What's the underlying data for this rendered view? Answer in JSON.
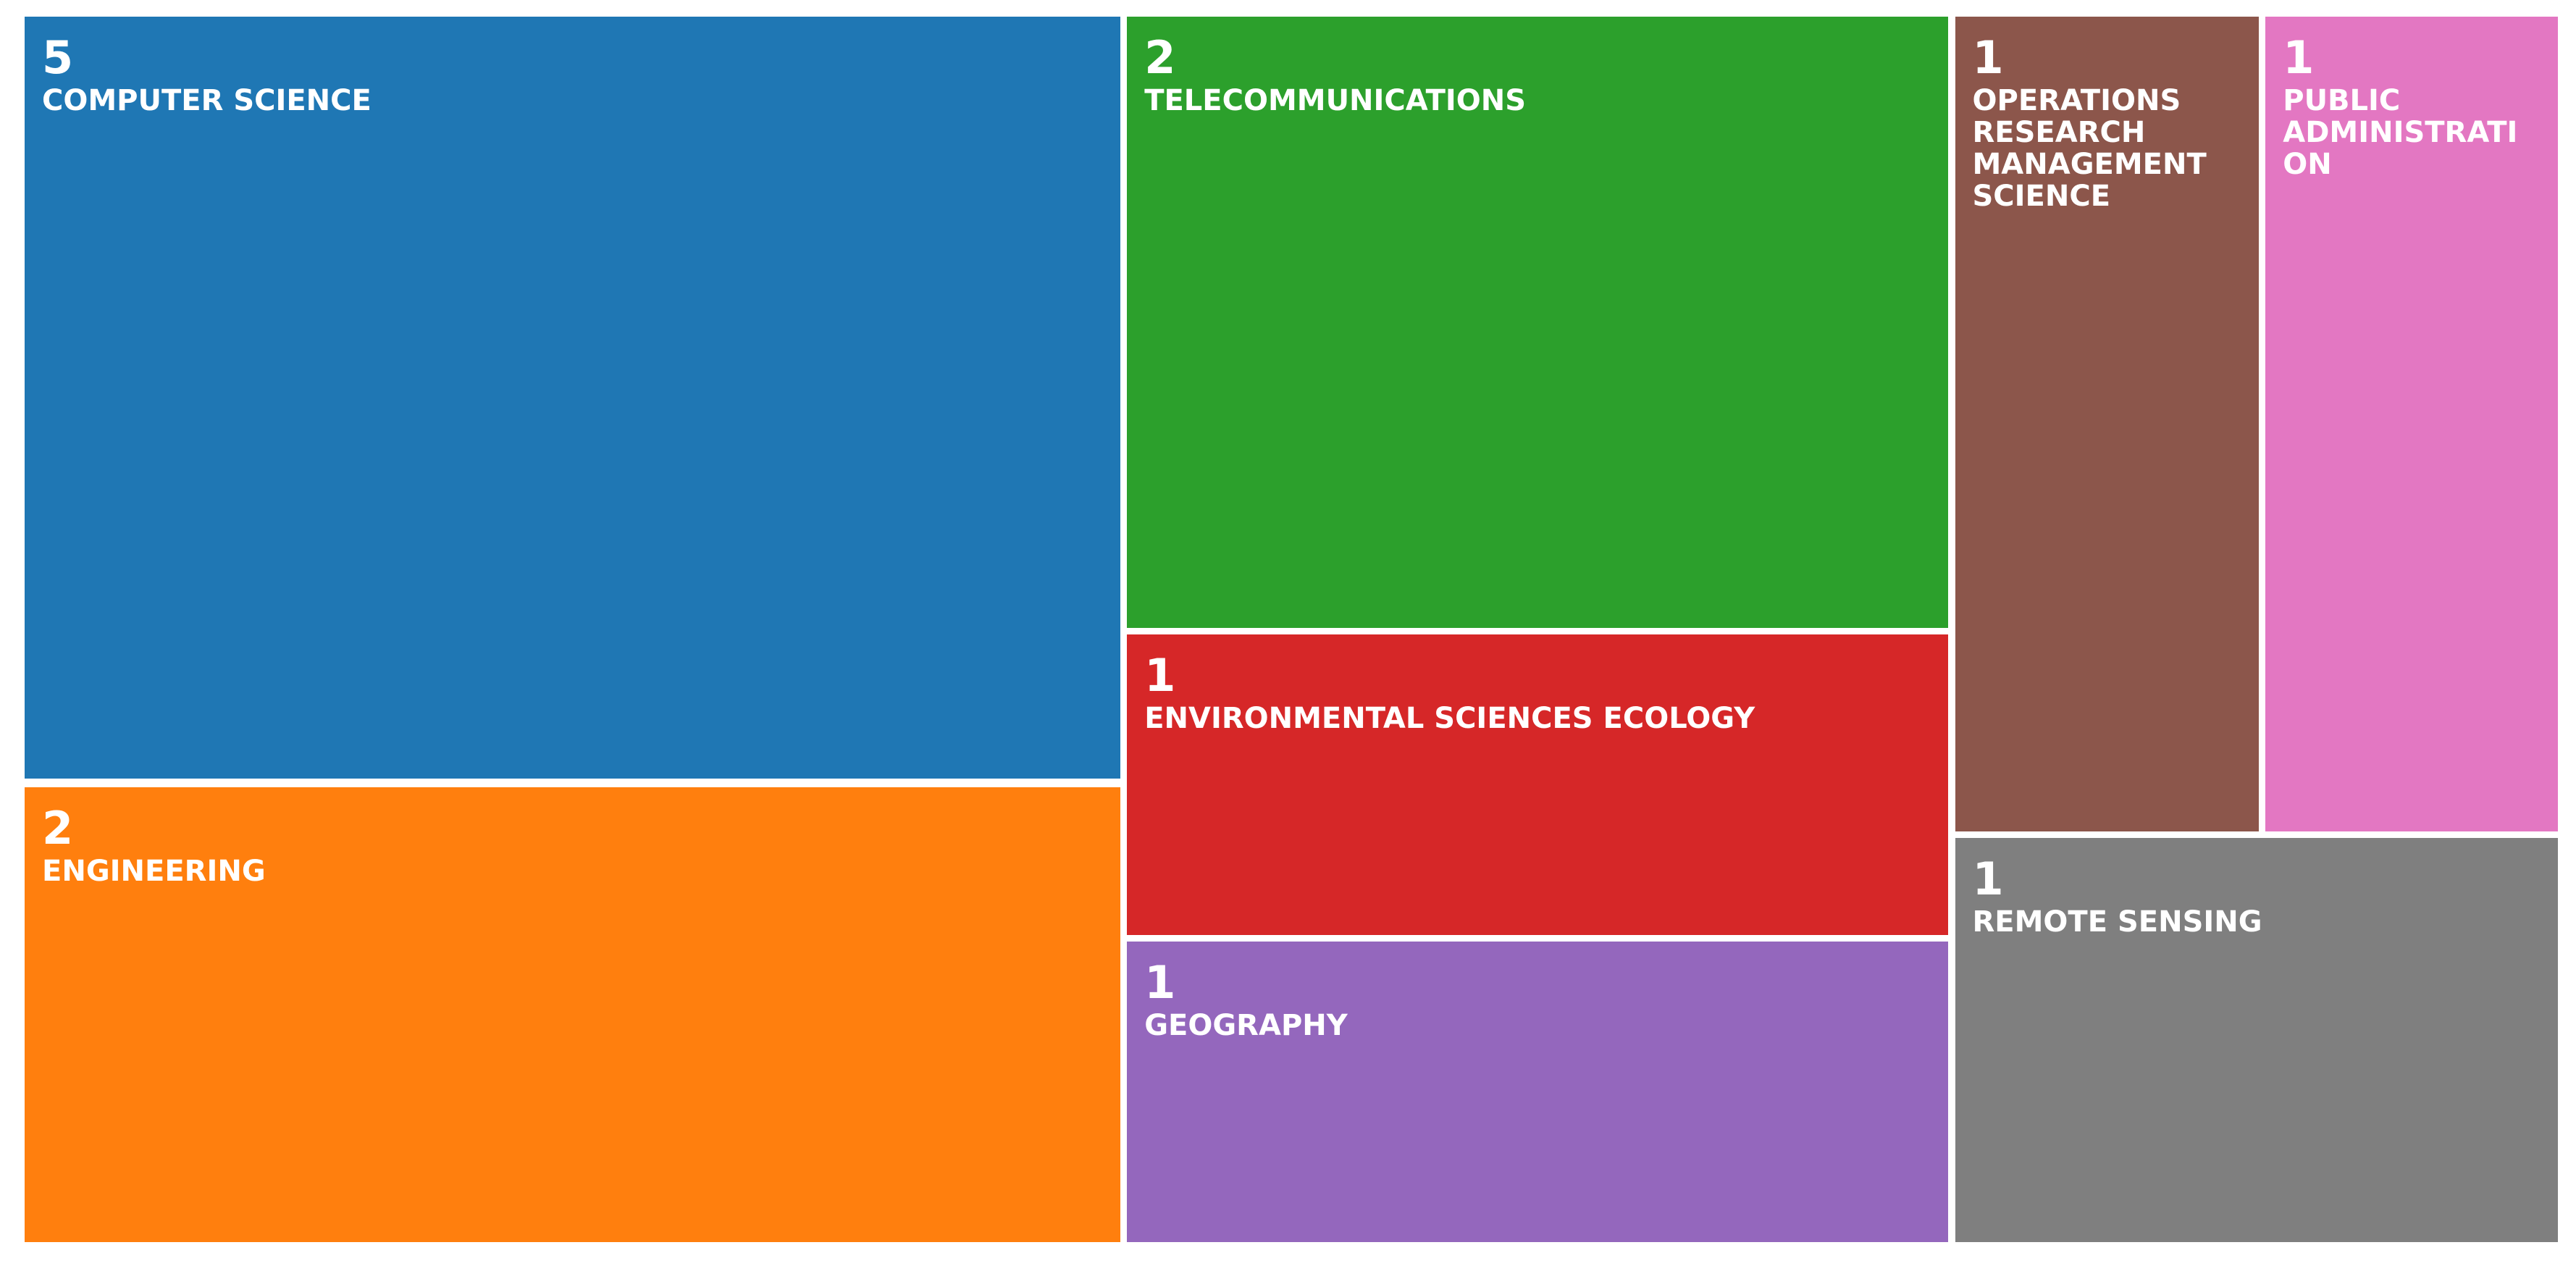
{
  "chart_data": {
    "type": "treemap",
    "categories": [
      "COMPUTER SCIENCE",
      "ENGINEERING",
      "TELECOMMUNICATIONS",
      "ENVIRONMENTAL SCIENCES ECOLOGY",
      "GEOGRAPHY",
      "OPERATIONS RESEARCH MANAGEMENT SCIENCE",
      "PUBLIC ADMINISTRATION",
      "REMOTE SENSING"
    ],
    "values": [
      5,
      2,
      2,
      1,
      1,
      1,
      1,
      1
    ],
    "colors": [
      "#1f77b4",
      "#ff7f0e",
      "#2ca02c",
      "#d62728",
      "#9467bd",
      "#8c564b",
      "#e377c2",
      "#7f7f7f"
    ]
  }
}
